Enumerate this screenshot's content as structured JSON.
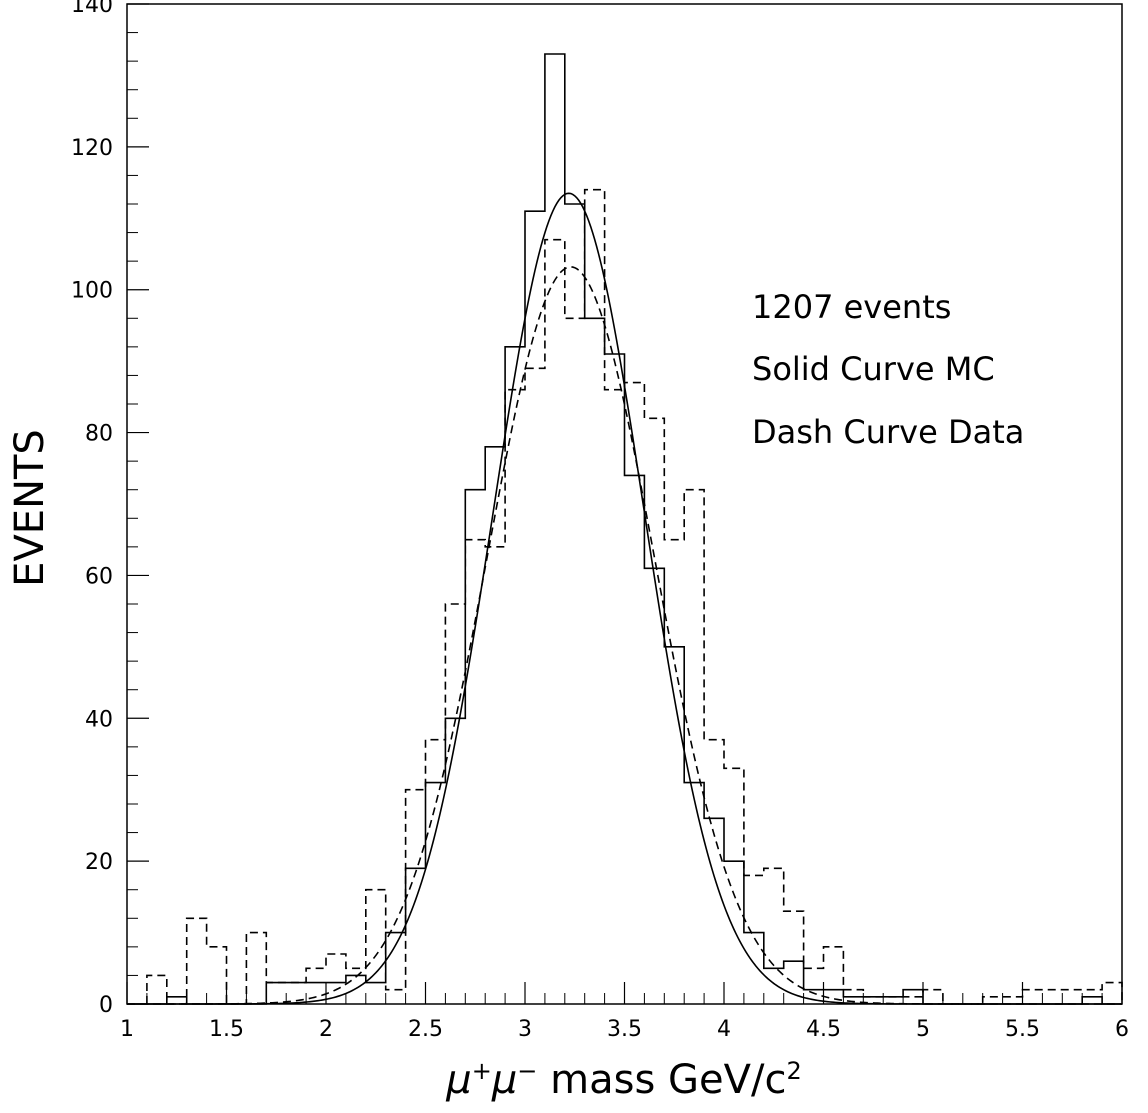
{
  "chart_data": {
    "type": "histogram",
    "xlabel": {
      "mu": "μ",
      "plus": "+",
      "minus": "−",
      "text": " mass GeV/c",
      "exp": "2"
    },
    "ylabel": "EVENTS",
    "xlim": [
      1,
      6
    ],
    "ylim": [
      0,
      140
    ],
    "x_ticks": [
      "1",
      "1.5",
      "2",
      "2.5",
      "3",
      "3.5",
      "4",
      "4.5",
      "5",
      "5.5",
      "6"
    ],
    "y_ticks": [
      "0",
      "20",
      "40",
      "60",
      "80",
      "100",
      "120",
      "140"
    ],
    "annotations": [
      "1207 events",
      "Solid Curve MC",
      "Dash Curve Data"
    ],
    "bin_width": 0.1,
    "series": [
      {
        "style": "solid",
        "color": "#000000",
        "bin_start": 1.0,
        "values": [
          0,
          0,
          1,
          0,
          0,
          0,
          0,
          3,
          3,
          3,
          3,
          4,
          3,
          10,
          19,
          31,
          40,
          72,
          78,
          92,
          111,
          133,
          112,
          96,
          91,
          74,
          61,
          50,
          31,
          26,
          20,
          10,
          5,
          6,
          2,
          2,
          1,
          1,
          1,
          2,
          0,
          0,
          0,
          0,
          0,
          0,
          0,
          0,
          1,
          0
        ],
        "curve": {
          "amp": 113.5,
          "mean": 3.22,
          "sigma": 0.38
        }
      },
      {
        "style": "dashed",
        "color": "#000000",
        "bin_start": 1.1,
        "values": [
          4,
          0,
          12,
          8,
          0,
          10,
          3,
          3,
          5,
          7,
          5,
          16,
          2,
          30,
          37,
          56,
          65,
          64,
          86,
          89,
          107,
          96,
          114,
          86,
          87,
          82,
          65,
          72,
          37,
          33,
          18,
          19,
          13,
          5,
          8,
          2,
          1,
          1,
          1,
          2,
          0,
          0,
          1,
          1,
          2,
          2,
          2,
          2,
          3
        ],
        "curve": {
          "amp": 103.2,
          "mean": 3.23,
          "sigma": 0.42
        }
      }
    ]
  }
}
